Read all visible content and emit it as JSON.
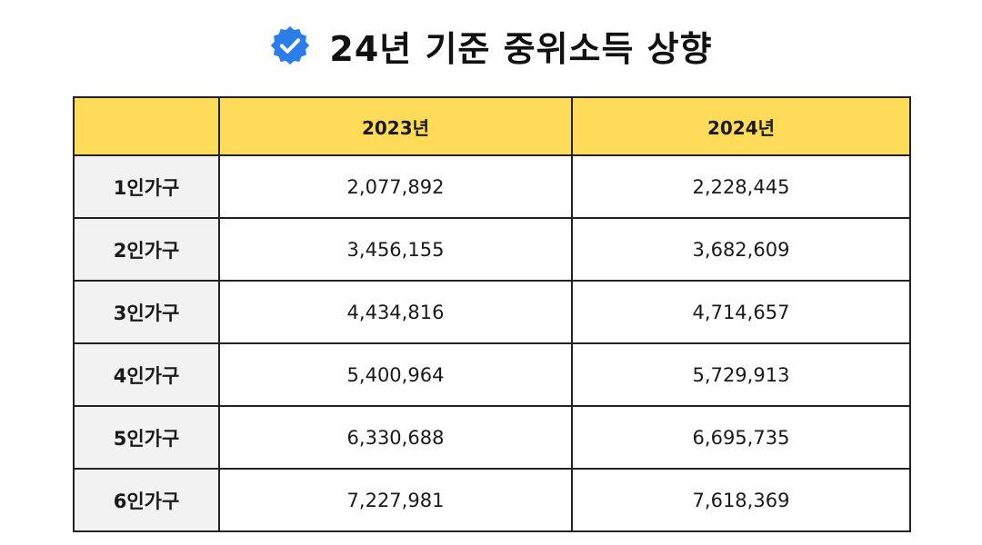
{
  "title": {
    "icon": "verified-check-badge-icon",
    "icon_color": "#2b7de9",
    "text": "24년 기준 중위소득 상향"
  },
  "table": {
    "header_bg": "#fedc5a",
    "label_bg": "#f2f2f2",
    "columns": [
      "",
      "2023년",
      "2024년"
    ],
    "rows": [
      {
        "label": "1인가구",
        "y2023": "2,077,892",
        "y2024": "2,228,445"
      },
      {
        "label": "2인가구",
        "y2023": "3,456,155",
        "y2024": "3,682,609"
      },
      {
        "label": "3인가구",
        "y2023": "4,434,816",
        "y2024": "4,714,657"
      },
      {
        "label": "4인가구",
        "y2023": "5,400,964",
        "y2024": "5,729,913"
      },
      {
        "label": "5인가구",
        "y2023": "6,330,688",
        "y2024": "6,695,735"
      },
      {
        "label": "6인가구",
        "y2023": "7,227,981",
        "y2024": "7,618,369"
      }
    ]
  }
}
